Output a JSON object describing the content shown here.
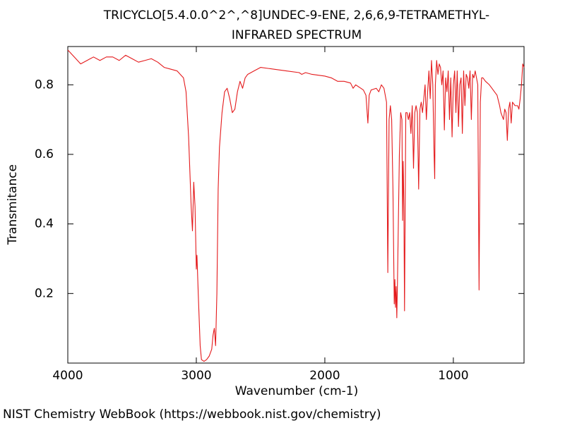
{
  "chart_data": {
    "type": "line",
    "title": "TRICYCLO[5.4.0.0^2^,^8]UNDEC-9-ENE, 2,6,6,9-TETRAMETHYL-",
    "subtitle": "INFRARED SPECTRUM",
    "x_label": "Wavenumber (cm-1)",
    "y_label": "Transmitance",
    "footer": "NIST Chemistry WebBook (https://webbook.nist.gov/chemistry)",
    "xlim": [
      4000,
      450
    ],
    "ylim": [
      0,
      0.91
    ],
    "xticks": [
      4000,
      3000,
      2000,
      1000
    ],
    "yticks": [
      0.2,
      0.4,
      0.6,
      0.8
    ],
    "grid": false,
    "x": [
      4000,
      3950,
      3900,
      3850,
      3800,
      3750,
      3700,
      3650,
      3600,
      3550,
      3500,
      3450,
      3400,
      3350,
      3300,
      3250,
      3200,
      3150,
      3100,
      3080,
      3060,
      3040,
      3030,
      3020,
      3010,
      3000,
      2995,
      2985,
      2970,
      2960,
      2940,
      2920,
      2900,
      2880,
      2870,
      2860,
      2850,
      2840,
      2830,
      2820,
      2800,
      2780,
      2760,
      2740,
      2720,
      2700,
      2680,
      2660,
      2640,
      2620,
      2600,
      2550,
      2500,
      2400,
      2300,
      2200,
      2180,
      2150,
      2100,
      2000,
      1950,
      1900,
      1850,
      1800,
      1780,
      1760,
      1720,
      1700,
      1680,
      1665,
      1655,
      1640,
      1600,
      1580,
      1560,
      1540,
      1520,
      1510,
      1500,
      1490,
      1480,
      1470,
      1460,
      1455,
      1450,
      1445,
      1440,
      1435,
      1420,
      1410,
      1400,
      1395,
      1390,
      1385,
      1380,
      1370,
      1360,
      1350,
      1340,
      1330,
      1320,
      1310,
      1300,
      1290,
      1280,
      1270,
      1260,
      1250,
      1240,
      1230,
      1220,
      1210,
      1200,
      1190,
      1180,
      1170,
      1160,
      1150,
      1145,
      1140,
      1130,
      1120,
      1110,
      1100,
      1090,
      1080,
      1070,
      1060,
      1050,
      1040,
      1030,
      1020,
      1010,
      1000,
      990,
      980,
      970,
      960,
      950,
      940,
      930,
      920,
      910,
      900,
      890,
      880,
      870,
      860,
      850,
      840,
      830,
      820,
      810,
      800,
      790,
      780,
      770,
      750,
      720,
      700,
      680,
      660,
      640,
      630,
      620,
      610,
      600,
      590,
      580,
      570,
      560,
      550,
      540,
      520,
      500,
      490,
      480,
      470,
      460,
      450
    ],
    "series": [
      {
        "color": "#e41a1c",
        "values": [
          0.9,
          0.88,
          0.86,
          0.87,
          0.88,
          0.87,
          0.88,
          0.88,
          0.87,
          0.885,
          0.875,
          0.865,
          0.87,
          0.875,
          0.865,
          0.85,
          0.845,
          0.84,
          0.82,
          0.78,
          0.65,
          0.45,
          0.38,
          0.52,
          0.45,
          0.27,
          0.31,
          0.2,
          0.05,
          0.01,
          0.005,
          0.01,
          0.02,
          0.04,
          0.08,
          0.1,
          0.05,
          0.2,
          0.5,
          0.62,
          0.72,
          0.78,
          0.79,
          0.76,
          0.72,
          0.73,
          0.78,
          0.81,
          0.79,
          0.82,
          0.83,
          0.84,
          0.85,
          0.845,
          0.84,
          0.835,
          0.83,
          0.835,
          0.83,
          0.825,
          0.82,
          0.81,
          0.81,
          0.805,
          0.79,
          0.8,
          0.79,
          0.785,
          0.77,
          0.69,
          0.77,
          0.785,
          0.79,
          0.78,
          0.8,
          0.79,
          0.75,
          0.26,
          0.7,
          0.74,
          0.7,
          0.5,
          0.17,
          0.24,
          0.16,
          0.22,
          0.13,
          0.23,
          0.6,
          0.72,
          0.7,
          0.41,
          0.58,
          0.45,
          0.15,
          0.72,
          0.72,
          0.7,
          0.72,
          0.66,
          0.74,
          0.56,
          0.72,
          0.74,
          0.72,
          0.5,
          0.73,
          0.75,
          0.72,
          0.76,
          0.8,
          0.7,
          0.78,
          0.84,
          0.76,
          0.87,
          0.8,
          0.6,
          0.53,
          0.8,
          0.87,
          0.83,
          0.86,
          0.85,
          0.8,
          0.84,
          0.67,
          0.82,
          0.78,
          0.84,
          0.7,
          0.82,
          0.65,
          0.8,
          0.84,
          0.72,
          0.84,
          0.68,
          0.8,
          0.82,
          0.66,
          0.84,
          0.74,
          0.83,
          0.82,
          0.79,
          0.84,
          0.7,
          0.83,
          0.82,
          0.84,
          0.82,
          0.8,
          0.21,
          0.75,
          0.82,
          0.82,
          0.81,
          0.8,
          0.79,
          0.78,
          0.77,
          0.74,
          0.72,
          0.71,
          0.7,
          0.73,
          0.72,
          0.64,
          0.73,
          0.75,
          0.69,
          0.75,
          0.74,
          0.74,
          0.73,
          0.76,
          0.8,
          0.86,
          0.85
        ]
      }
    ]
  }
}
